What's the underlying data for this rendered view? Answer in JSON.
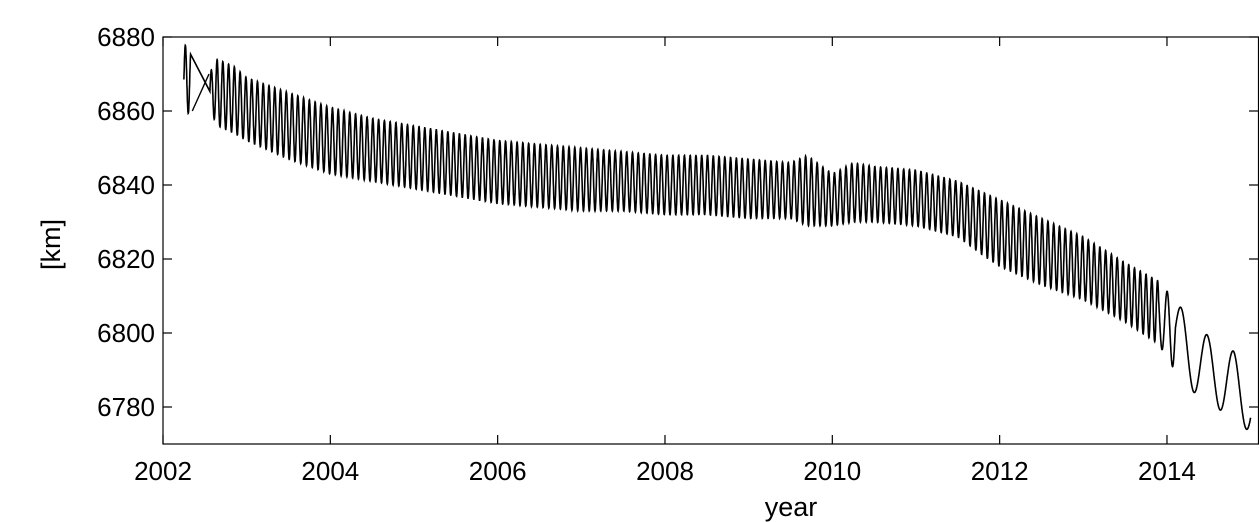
{
  "chart_data": {
    "type": "line",
    "title": "",
    "xlabel": "year",
    "ylabel": "[km]",
    "xlim": [
      2002,
      2015.1
    ],
    "ylim": [
      6770,
      6880
    ],
    "xticks": [
      2002,
      2004,
      2006,
      2008,
      2010,
      2012,
      2014
    ],
    "yticks": [
      6780,
      6800,
      6820,
      6840,
      6860,
      6880
    ],
    "xtick_labels": [
      "2002",
      "2004",
      "2006",
      "2008",
      "2010",
      "2012",
      "2014"
    ],
    "ytick_labels": [
      "6780",
      "6800",
      "6820",
      "6840",
      "6860",
      "6880"
    ],
    "grid": false,
    "legend": "none",
    "line_color": "#000000",
    "envelope": [
      {
        "x": 2002.25,
        "upper": 6878,
        "lower": 6859
      },
      {
        "x": 2002.4,
        "upper": 6876,
        "lower": 6860
      },
      {
        "x": 2002.5,
        "upper": 6868,
        "lower": 6863
      },
      {
        "x": 2002.65,
        "upper": 6874,
        "lower": 6856
      },
      {
        "x": 2002.85,
        "upper": 6872,
        "lower": 6854
      },
      {
        "x": 2003.0,
        "upper": 6869,
        "lower": 6852
      },
      {
        "x": 2003.5,
        "upper": 6865,
        "lower": 6847
      },
      {
        "x": 2004.0,
        "upper": 6861,
        "lower": 6843
      },
      {
        "x": 2004.5,
        "upper": 6858,
        "lower": 6841
      },
      {
        "x": 2005.0,
        "upper": 6856,
        "lower": 6839
      },
      {
        "x": 2005.5,
        "upper": 6854,
        "lower": 6837
      },
      {
        "x": 2006.0,
        "upper": 6852,
        "lower": 6835
      },
      {
        "x": 2006.5,
        "upper": 6851,
        "lower": 6834
      },
      {
        "x": 2007.0,
        "upper": 6850,
        "lower": 6833
      },
      {
        "x": 2007.5,
        "upper": 6849,
        "lower": 6833
      },
      {
        "x": 2008.0,
        "upper": 6848,
        "lower": 6832
      },
      {
        "x": 2008.5,
        "upper": 6848,
        "lower": 6832
      },
      {
        "x": 2009.0,
        "upper": 6847,
        "lower": 6831
      },
      {
        "x": 2009.5,
        "upper": 6846,
        "lower": 6831
      },
      {
        "x": 2009.7,
        "upper": 6848,
        "lower": 6829
      },
      {
        "x": 2010.0,
        "upper": 6843,
        "lower": 6829
      },
      {
        "x": 2010.25,
        "upper": 6846,
        "lower": 6830
      },
      {
        "x": 2010.5,
        "upper": 6845,
        "lower": 6830
      },
      {
        "x": 2011.0,
        "upper": 6844,
        "lower": 6829
      },
      {
        "x": 2011.5,
        "upper": 6841,
        "lower": 6826
      },
      {
        "x": 2011.8,
        "upper": 6838,
        "lower": 6821
      },
      {
        "x": 2012.0,
        "upper": 6836,
        "lower": 6818
      },
      {
        "x": 2012.5,
        "upper": 6831,
        "lower": 6813
      },
      {
        "x": 2013.0,
        "upper": 6826,
        "lower": 6809
      },
      {
        "x": 2013.5,
        "upper": 6819,
        "lower": 6803
      },
      {
        "x": 2013.9,
        "upper": 6814,
        "lower": 6797
      },
      {
        "x": 2014.2,
        "upper": 6806,
        "lower": 6786
      },
      {
        "x": 2014.5,
        "upper": 6799,
        "lower": 6781
      },
      {
        "x": 2014.8,
        "upper": 6795,
        "lower": 6777
      },
      {
        "x": 2015.0,
        "upper": 6790,
        "lower": 6773
      }
    ],
    "gap_segment": [
      [
        2002.35,
        6860
      ],
      [
        2002.55,
        6870
      ]
    ]
  }
}
